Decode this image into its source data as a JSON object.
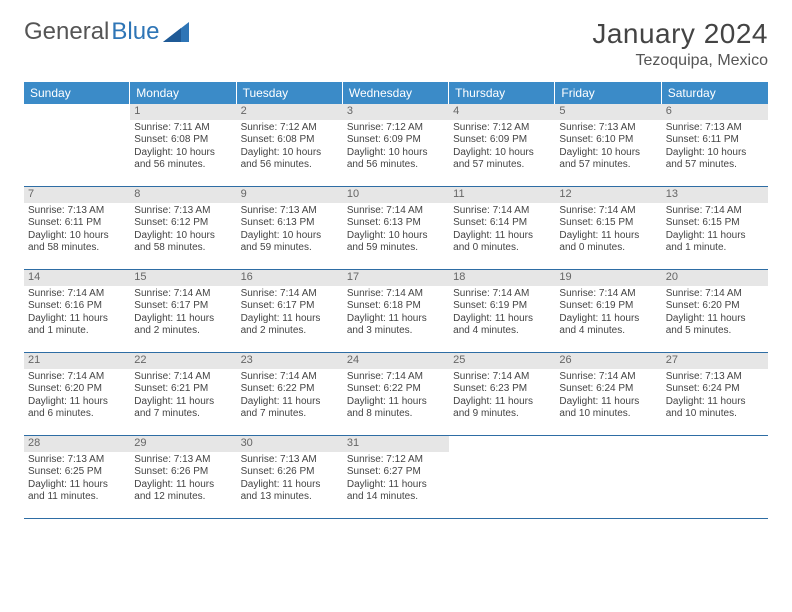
{
  "logo": {
    "text_a": "General",
    "text_b": "Blue"
  },
  "title": "January 2024",
  "location": "Tezoquipa, Mexico",
  "colors": {
    "header_bg": "#3b8bc8",
    "header_text": "#ffffff",
    "daynum_bg": "#e6e6e6",
    "rule": "#2e6da4",
    "logo_blue": "#2e75b6"
  },
  "day_headers": [
    "Sunday",
    "Monday",
    "Tuesday",
    "Wednesday",
    "Thursday",
    "Friday",
    "Saturday"
  ],
  "weeks": [
    [
      {
        "n": "",
        "sunrise": "",
        "sunset": "",
        "daylight": ""
      },
      {
        "n": "1",
        "sunrise": "Sunrise: 7:11 AM",
        "sunset": "Sunset: 6:08 PM",
        "daylight": "Daylight: 10 hours and 56 minutes."
      },
      {
        "n": "2",
        "sunrise": "Sunrise: 7:12 AM",
        "sunset": "Sunset: 6:08 PM",
        "daylight": "Daylight: 10 hours and 56 minutes."
      },
      {
        "n": "3",
        "sunrise": "Sunrise: 7:12 AM",
        "sunset": "Sunset: 6:09 PM",
        "daylight": "Daylight: 10 hours and 56 minutes."
      },
      {
        "n": "4",
        "sunrise": "Sunrise: 7:12 AM",
        "sunset": "Sunset: 6:09 PM",
        "daylight": "Daylight: 10 hours and 57 minutes."
      },
      {
        "n": "5",
        "sunrise": "Sunrise: 7:13 AM",
        "sunset": "Sunset: 6:10 PM",
        "daylight": "Daylight: 10 hours and 57 minutes."
      },
      {
        "n": "6",
        "sunrise": "Sunrise: 7:13 AM",
        "sunset": "Sunset: 6:11 PM",
        "daylight": "Daylight: 10 hours and 57 minutes."
      }
    ],
    [
      {
        "n": "7",
        "sunrise": "Sunrise: 7:13 AM",
        "sunset": "Sunset: 6:11 PM",
        "daylight": "Daylight: 10 hours and 58 minutes."
      },
      {
        "n": "8",
        "sunrise": "Sunrise: 7:13 AM",
        "sunset": "Sunset: 6:12 PM",
        "daylight": "Daylight: 10 hours and 58 minutes."
      },
      {
        "n": "9",
        "sunrise": "Sunrise: 7:13 AM",
        "sunset": "Sunset: 6:13 PM",
        "daylight": "Daylight: 10 hours and 59 minutes."
      },
      {
        "n": "10",
        "sunrise": "Sunrise: 7:14 AM",
        "sunset": "Sunset: 6:13 PM",
        "daylight": "Daylight: 10 hours and 59 minutes."
      },
      {
        "n": "11",
        "sunrise": "Sunrise: 7:14 AM",
        "sunset": "Sunset: 6:14 PM",
        "daylight": "Daylight: 11 hours and 0 minutes."
      },
      {
        "n": "12",
        "sunrise": "Sunrise: 7:14 AM",
        "sunset": "Sunset: 6:15 PM",
        "daylight": "Daylight: 11 hours and 0 minutes."
      },
      {
        "n": "13",
        "sunrise": "Sunrise: 7:14 AM",
        "sunset": "Sunset: 6:15 PM",
        "daylight": "Daylight: 11 hours and 1 minute."
      }
    ],
    [
      {
        "n": "14",
        "sunrise": "Sunrise: 7:14 AM",
        "sunset": "Sunset: 6:16 PM",
        "daylight": "Daylight: 11 hours and 1 minute."
      },
      {
        "n": "15",
        "sunrise": "Sunrise: 7:14 AM",
        "sunset": "Sunset: 6:17 PM",
        "daylight": "Daylight: 11 hours and 2 minutes."
      },
      {
        "n": "16",
        "sunrise": "Sunrise: 7:14 AM",
        "sunset": "Sunset: 6:17 PM",
        "daylight": "Daylight: 11 hours and 2 minutes."
      },
      {
        "n": "17",
        "sunrise": "Sunrise: 7:14 AM",
        "sunset": "Sunset: 6:18 PM",
        "daylight": "Daylight: 11 hours and 3 minutes."
      },
      {
        "n": "18",
        "sunrise": "Sunrise: 7:14 AM",
        "sunset": "Sunset: 6:19 PM",
        "daylight": "Daylight: 11 hours and 4 minutes."
      },
      {
        "n": "19",
        "sunrise": "Sunrise: 7:14 AM",
        "sunset": "Sunset: 6:19 PM",
        "daylight": "Daylight: 11 hours and 4 minutes."
      },
      {
        "n": "20",
        "sunrise": "Sunrise: 7:14 AM",
        "sunset": "Sunset: 6:20 PM",
        "daylight": "Daylight: 11 hours and 5 minutes."
      }
    ],
    [
      {
        "n": "21",
        "sunrise": "Sunrise: 7:14 AM",
        "sunset": "Sunset: 6:20 PM",
        "daylight": "Daylight: 11 hours and 6 minutes."
      },
      {
        "n": "22",
        "sunrise": "Sunrise: 7:14 AM",
        "sunset": "Sunset: 6:21 PM",
        "daylight": "Daylight: 11 hours and 7 minutes."
      },
      {
        "n": "23",
        "sunrise": "Sunrise: 7:14 AM",
        "sunset": "Sunset: 6:22 PM",
        "daylight": "Daylight: 11 hours and 7 minutes."
      },
      {
        "n": "24",
        "sunrise": "Sunrise: 7:14 AM",
        "sunset": "Sunset: 6:22 PM",
        "daylight": "Daylight: 11 hours and 8 minutes."
      },
      {
        "n": "25",
        "sunrise": "Sunrise: 7:14 AM",
        "sunset": "Sunset: 6:23 PM",
        "daylight": "Daylight: 11 hours and 9 minutes."
      },
      {
        "n": "26",
        "sunrise": "Sunrise: 7:14 AM",
        "sunset": "Sunset: 6:24 PM",
        "daylight": "Daylight: 11 hours and 10 minutes."
      },
      {
        "n": "27",
        "sunrise": "Sunrise: 7:13 AM",
        "sunset": "Sunset: 6:24 PM",
        "daylight": "Daylight: 11 hours and 10 minutes."
      }
    ],
    [
      {
        "n": "28",
        "sunrise": "Sunrise: 7:13 AM",
        "sunset": "Sunset: 6:25 PM",
        "daylight": "Daylight: 11 hours and 11 minutes."
      },
      {
        "n": "29",
        "sunrise": "Sunrise: 7:13 AM",
        "sunset": "Sunset: 6:26 PM",
        "daylight": "Daylight: 11 hours and 12 minutes."
      },
      {
        "n": "30",
        "sunrise": "Sunrise: 7:13 AM",
        "sunset": "Sunset: 6:26 PM",
        "daylight": "Daylight: 11 hours and 13 minutes."
      },
      {
        "n": "31",
        "sunrise": "Sunrise: 7:12 AM",
        "sunset": "Sunset: 6:27 PM",
        "daylight": "Daylight: 11 hours and 14 minutes."
      },
      {
        "n": "",
        "sunrise": "",
        "sunset": "",
        "daylight": ""
      },
      {
        "n": "",
        "sunrise": "",
        "sunset": "",
        "daylight": ""
      },
      {
        "n": "",
        "sunrise": "",
        "sunset": "",
        "daylight": ""
      }
    ]
  ]
}
